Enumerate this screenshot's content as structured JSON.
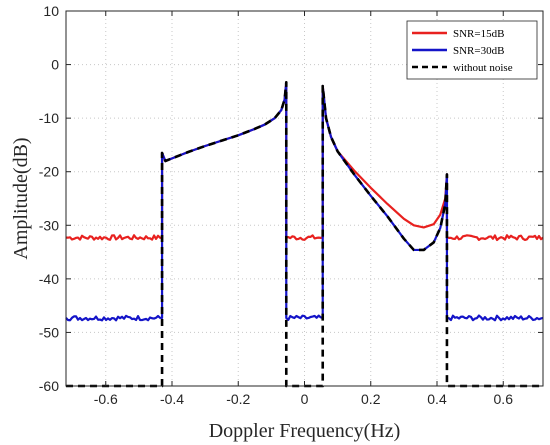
{
  "chart_data": {
    "type": "line",
    "xlabel": "Doppler Frequency(Hz)",
    "ylabel": "Amplitude(dB)",
    "xlim": [
      -0.72,
      0.72
    ],
    "ylim": [
      -60,
      10
    ],
    "xticks": [
      -0.6,
      -0.4,
      -0.2,
      0,
      0.2,
      0.4,
      0.6
    ],
    "xtick_labels": [
      "-0.6",
      "-0.4",
      "-0.2",
      "0",
      "0.2",
      "0.4",
      "0.6"
    ],
    "yticks": [
      -60,
      -50,
      -40,
      -30,
      -20,
      -10,
      0,
      10
    ],
    "ytick_labels": [
      "-60",
      "-50",
      "-40",
      "-30",
      "-20",
      "-10",
      "0",
      "10"
    ],
    "grid": true,
    "legend_position": "top-right",
    "series": [
      {
        "name": "SNR=15dB",
        "color": "#e8211f",
        "style": "solid",
        "floor": -32.3,
        "segments": [
          [
            [
              -0.72,
              -32.3
            ],
            [
              -0.43,
              -32.3
            ],
            [
              -0.43,
              -16.5
            ],
            [
              -0.42,
              -18.0
            ],
            [
              -0.35,
              -16.3
            ],
            [
              -0.3,
              -15.2
            ],
            [
              -0.25,
              -14.2
            ],
            [
              -0.2,
              -13.2
            ],
            [
              -0.15,
              -12.0
            ],
            [
              -0.12,
              -11.2
            ],
            [
              -0.09,
              -10.0
            ],
            [
              -0.07,
              -8.5
            ],
            [
              -0.06,
              -6.5
            ],
            [
              -0.055,
              -3.3
            ],
            [
              -0.055,
              -32.3
            ],
            [
              0.055,
              -32.3
            ],
            [
              0.055,
              -4.0
            ],
            [
              0.065,
              -10.0
            ],
            [
              0.08,
              -13.5
            ],
            [
              0.1,
              -16.2
            ],
            [
              0.15,
              -19.8
            ],
            [
              0.2,
              -23.0
            ],
            [
              0.25,
              -26.0
            ],
            [
              0.3,
              -28.8
            ],
            [
              0.33,
              -30.0
            ],
            [
              0.36,
              -30.4
            ],
            [
              0.39,
              -29.8
            ],
            [
              0.41,
              -28.0
            ],
            [
              0.425,
              -25.0
            ],
            [
              0.43,
              -20.5
            ],
            [
              0.43,
              -32.3
            ],
            [
              0.72,
              -32.3
            ]
          ]
        ]
      },
      {
        "name": "SNR=30dB",
        "color": "#1414c8",
        "style": "solid",
        "floor": -47.3,
        "segments": [
          [
            [
              -0.72,
              -47.3
            ],
            [
              -0.43,
              -47.3
            ],
            [
              -0.43,
              -16.5
            ],
            [
              -0.42,
              -18.0
            ],
            [
              -0.35,
              -16.3
            ],
            [
              -0.3,
              -15.2
            ],
            [
              -0.25,
              -14.2
            ],
            [
              -0.2,
              -13.2
            ],
            [
              -0.15,
              -12.0
            ],
            [
              -0.12,
              -11.2
            ],
            [
              -0.09,
              -10.0
            ],
            [
              -0.07,
              -8.5
            ],
            [
              -0.06,
              -6.5
            ],
            [
              -0.055,
              -3.3
            ],
            [
              -0.055,
              -47.3
            ],
            [
              0.055,
              -47.3
            ],
            [
              0.055,
              -4.0
            ],
            [
              0.065,
              -10.0
            ],
            [
              0.08,
              -13.5
            ],
            [
              0.1,
              -16.2
            ],
            [
              0.15,
              -20.5
            ],
            [
              0.2,
              -24.5
            ],
            [
              0.25,
              -28.3
            ],
            [
              0.3,
              -32.5
            ],
            [
              0.33,
              -34.6
            ],
            [
              0.36,
              -34.6
            ],
            [
              0.39,
              -33.2
            ],
            [
              0.41,
              -30.5
            ],
            [
              0.425,
              -26.0
            ],
            [
              0.43,
              -20.5
            ],
            [
              0.43,
              -47.3
            ],
            [
              0.72,
              -47.3
            ]
          ]
        ]
      },
      {
        "name": "without noise",
        "color": "#000000",
        "style": "dashed",
        "floor": null,
        "segments": [
          [
            [
              -0.72,
              -60
            ],
            [
              -0.43,
              -60
            ],
            [
              -0.43,
              -16.5
            ],
            [
              -0.42,
              -18.0
            ],
            [
              -0.35,
              -16.3
            ],
            [
              -0.3,
              -15.2
            ],
            [
              -0.25,
              -14.2
            ],
            [
              -0.2,
              -13.2
            ],
            [
              -0.15,
              -12.0
            ],
            [
              -0.12,
              -11.2
            ],
            [
              -0.09,
              -10.0
            ],
            [
              -0.07,
              -8.5
            ],
            [
              -0.06,
              -6.5
            ],
            [
              -0.055,
              -3.3
            ],
            [
              -0.055,
              -60
            ],
            [
              0.055,
              -60
            ],
            [
              0.055,
              -4.0
            ],
            [
              0.065,
              -10.0
            ],
            [
              0.08,
              -13.5
            ],
            [
              0.1,
              -16.2
            ],
            [
              0.15,
              -20.5
            ],
            [
              0.2,
              -24.5
            ],
            [
              0.25,
              -28.3
            ],
            [
              0.3,
              -32.5
            ],
            [
              0.33,
              -34.6
            ],
            [
              0.36,
              -34.6
            ],
            [
              0.39,
              -33.2
            ],
            [
              0.41,
              -30.5
            ],
            [
              0.425,
              -26.0
            ],
            [
              0.43,
              -20.5
            ],
            [
              0.43,
              -60
            ],
            [
              0.72,
              -60
            ]
          ]
        ]
      }
    ]
  }
}
